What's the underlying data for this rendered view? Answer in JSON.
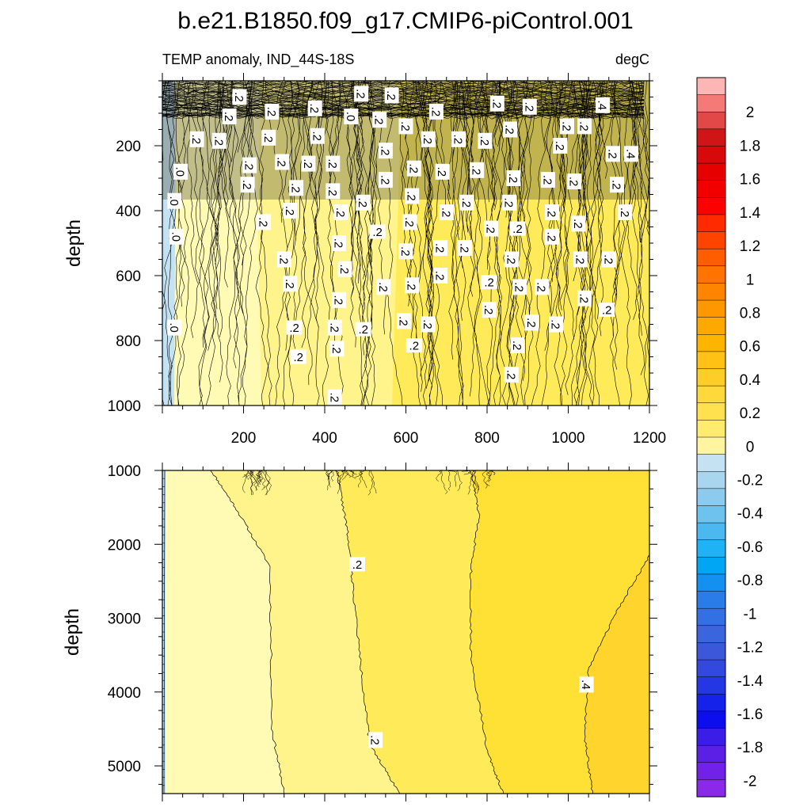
{
  "chart_data": {
    "type": "contour",
    "title": "b.e21.B1850.f09_g17.CMIP6-piControl.001",
    "subtitle_left": "TEMP anomaly, IND_44S-18S",
    "subtitle_right": "degC",
    "x_ticks": [
      200,
      400,
      600,
      800,
      1000,
      1200
    ],
    "xlim": [
      0,
      1200
    ],
    "panels": [
      {
        "name": "upper",
        "ylabel": "depth",
        "ylim": [
          0,
          1000
        ],
        "y_ticks": [
          200,
          400,
          600,
          800,
          1000
        ],
        "contour_labels": [
          {
            "text": ".2",
            "x": 190,
            "y": 50,
            "rot": 90
          },
          {
            "text": ".2",
            "x": 165,
            "y": 110,
            "rot": 90
          },
          {
            "text": ".2",
            "x": 270,
            "y": 95,
            "rot": 90
          },
          {
            "text": ".2",
            "x": 376,
            "y": 85,
            "rot": 90
          },
          {
            "text": ".2",
            "x": 490,
            "y": 40,
            "rot": 90
          },
          {
            "text": ".2",
            "x": 565,
            "y": 45,
            "rot": 90
          },
          {
            "text": ".0",
            "x": 465,
            "y": 110,
            "rot": 90
          },
          {
            "text": ".2",
            "x": 535,
            "y": 120,
            "rot": 90
          },
          {
            "text": ".2",
            "x": 600,
            "y": 140,
            "rot": 90
          },
          {
            "text": ".2",
            "x": 675,
            "y": 95,
            "rot": 90
          },
          {
            "text": ".2",
            "x": 825,
            "y": 70,
            "rot": 90
          },
          {
            "text": ".2",
            "x": 905,
            "y": 80,
            "rot": 90
          },
          {
            "text": ".4",
            "x": 1085,
            "y": 75,
            "rot": 90
          },
          {
            "text": ".2",
            "x": 857,
            "y": 150,
            "rot": 90
          },
          {
            "text": ".2",
            "x": 997,
            "y": 140,
            "rot": 90
          },
          {
            "text": ".2",
            "x": 1040,
            "y": 140,
            "rot": 90
          },
          {
            "text": ".2",
            "x": 85,
            "y": 180,
            "rot": 90
          },
          {
            "text": ".2",
            "x": 140,
            "y": 185,
            "rot": 90
          },
          {
            "text": ".2",
            "x": 262,
            "y": 175,
            "rot": 90
          },
          {
            "text": ".2",
            "x": 382,
            "y": 170,
            "rot": 90
          },
          {
            "text": ".2",
            "x": 655,
            "y": 180,
            "rot": 90
          },
          {
            "text": ".2",
            "x": 730,
            "y": 180,
            "rot": 90
          },
          {
            "text": ".2",
            "x": 795,
            "y": 185,
            "rot": 90
          },
          {
            "text": ".2",
            "x": 980,
            "y": 200,
            "rot": 90
          },
          {
            "text": ".2",
            "x": 1110,
            "y": 225,
            "rot": 90
          },
          {
            "text": ".4",
            "x": 1155,
            "y": 225,
            "rot": 90
          },
          {
            "text": ".2",
            "x": 550,
            "y": 215,
            "rot": 90
          },
          {
            "text": ".0",
            "x": 45,
            "y": 280,
            "rot": 90
          },
          {
            "text": ".2",
            "x": 215,
            "y": 260,
            "rot": 90
          },
          {
            "text": ".2",
            "x": 295,
            "y": 250,
            "rot": 90
          },
          {
            "text": ".2",
            "x": 360,
            "y": 255,
            "rot": 90
          },
          {
            "text": ".2",
            "x": 420,
            "y": 255,
            "rot": 90
          },
          {
            "text": ".2",
            "x": 620,
            "y": 270,
            "rot": 90
          },
          {
            "text": ".2",
            "x": 690,
            "y": 280,
            "rot": 90
          },
          {
            "text": ".2",
            "x": 775,
            "y": 275,
            "rot": 90
          },
          {
            "text": ".2",
            "x": 210,
            "y": 320,
            "rot": 90
          },
          {
            "text": ".2",
            "x": 330,
            "y": 330,
            "rot": 90
          },
          {
            "text": ".2",
            "x": 420,
            "y": 340,
            "rot": 90
          },
          {
            "text": ".2",
            "x": 550,
            "y": 305,
            "rot": 90
          },
          {
            "text": ".2",
            "x": 865,
            "y": 300,
            "rot": 90
          },
          {
            "text": ".2",
            "x": 950,
            "y": 305,
            "rot": 90
          },
          {
            "text": ".2",
            "x": 1015,
            "y": 310,
            "rot": 90
          },
          {
            "text": ".2",
            "x": 1120,
            "y": 320,
            "rot": 90
          },
          {
            "text": ".2",
            "x": 615,
            "y": 355,
            "rot": 90
          },
          {
            "text": ".0",
            "x": 30,
            "y": 370,
            "rot": 90
          },
          {
            "text": ".2",
            "x": 495,
            "y": 375,
            "rot": 90
          },
          {
            "text": ".2",
            "x": 750,
            "y": 375,
            "rot": 90
          },
          {
            "text": ".2",
            "x": 855,
            "y": 375,
            "rot": 90
          },
          {
            "text": ".2",
            "x": 315,
            "y": 400,
            "rot": 90
          },
          {
            "text": ".2",
            "x": 440,
            "y": 405,
            "rot": 90
          },
          {
            "text": ".2",
            "x": 700,
            "y": 405,
            "rot": 90
          },
          {
            "text": ".2",
            "x": 960,
            "y": 405,
            "rot": 90
          },
          {
            "text": ".2",
            "x": 1140,
            "y": 405,
            "rot": 90
          },
          {
            "text": ".2",
            "x": 250,
            "y": 435,
            "rot": 90
          },
          {
            "text": ".2",
            "x": 610,
            "y": 435,
            "rot": 90
          },
          {
            "text": ".2",
            "x": 810,
            "y": 455,
            "rot": 90
          },
          {
            "text": ".2",
            "x": 875,
            "y": 455,
            "rot": 0
          },
          {
            "text": ".2",
            "x": 1025,
            "y": 440,
            "rot": 90
          },
          {
            "text": ".0",
            "x": 35,
            "y": 480,
            "rot": 90
          },
          {
            "text": ".2",
            "x": 530,
            "y": 465,
            "rot": 0
          },
          {
            "text": ".2",
            "x": 435,
            "y": 500,
            "rot": 90
          },
          {
            "text": ".2",
            "x": 960,
            "y": 480,
            "rot": 90
          },
          {
            "text": ".2",
            "x": 600,
            "y": 525,
            "rot": 90
          },
          {
            "text": ".2",
            "x": 685,
            "y": 515,
            "rot": 90
          },
          {
            "text": ".2",
            "x": 745,
            "y": 515,
            "rot": 90
          },
          {
            "text": ".2",
            "x": 300,
            "y": 550,
            "rot": 90
          },
          {
            "text": ".2",
            "x": 860,
            "y": 550,
            "rot": 90
          },
          {
            "text": ".2",
            "x": 1030,
            "y": 550,
            "rot": 90
          },
          {
            "text": ".2",
            "x": 1100,
            "y": 550,
            "rot": 90
          },
          {
            "text": ".2",
            "x": 450,
            "y": 580,
            "rot": 90
          },
          {
            "text": ".2",
            "x": 685,
            "y": 600,
            "rot": 90
          },
          {
            "text": ".2",
            "x": 315,
            "y": 625,
            "rot": 90
          },
          {
            "text": ".2",
            "x": 545,
            "y": 635,
            "rot": 90
          },
          {
            "text": ".2",
            "x": 615,
            "y": 630,
            "rot": 90
          },
          {
            "text": ".2",
            "x": 805,
            "y": 620,
            "rot": 0
          },
          {
            "text": ".2",
            "x": 880,
            "y": 635,
            "rot": 90
          },
          {
            "text": ".2",
            "x": 935,
            "y": 635,
            "rot": 90
          },
          {
            "text": ".2",
            "x": 1040,
            "y": 670,
            "rot": 90
          },
          {
            "text": ".2",
            "x": 435,
            "y": 675,
            "rot": 90
          },
          {
            "text": ".2",
            "x": 805,
            "y": 705,
            "rot": 90
          },
          {
            "text": ".2",
            "x": 1095,
            "y": 705,
            "rot": 0
          },
          {
            "text": ".0",
            "x": 30,
            "y": 760,
            "rot": 90
          },
          {
            "text": ".2",
            "x": 325,
            "y": 760,
            "rot": 0
          },
          {
            "text": ".2",
            "x": 425,
            "y": 760,
            "rot": 90
          },
          {
            "text": ".2",
            "x": 495,
            "y": 765,
            "rot": 0
          },
          {
            "text": ".2",
            "x": 595,
            "y": 740,
            "rot": 90
          },
          {
            "text": ".2",
            "x": 655,
            "y": 750,
            "rot": 90
          },
          {
            "text": ".2",
            "x": 910,
            "y": 745,
            "rot": 90
          },
          {
            "text": ".2",
            "x": 970,
            "y": 750,
            "rot": 90
          },
          {
            "text": ".2",
            "x": 620,
            "y": 815,
            "rot": 0
          },
          {
            "text": ".2",
            "x": 875,
            "y": 815,
            "rot": 90
          },
          {
            "text": ".2",
            "x": 335,
            "y": 850,
            "rot": 0
          },
          {
            "text": ".2",
            "x": 430,
            "y": 825,
            "rot": 90
          },
          {
            "text": ".2",
            "x": 860,
            "y": 905,
            "rot": 90
          },
          {
            "text": ".2",
            "x": 425,
            "y": 975,
            "rot": 90
          }
        ]
      },
      {
        "name": "lower",
        "ylabel": "depth",
        "ylim": [
          1000,
          5375
        ],
        "y_ticks": [
          1000,
          2000,
          3000,
          4000,
          5000
        ],
        "regions": [
          {
            "label": ".0",
            "color": "#c4e2f2"
          },
          {
            "label": "0-0.1",
            "color": "#fffbb4"
          },
          {
            "label": "0.1-0.2",
            "color": "#fff48c"
          },
          {
            "label": "0.2-0.3",
            "color": "#ffeb5a"
          },
          {
            "label": "0.3-0.4",
            "color": "#ffe135"
          },
          {
            "label": "0.4-0.5",
            "color": "#fed42d"
          }
        ],
        "contour_labels": [
          {
            "text": ".2",
            "x": 480,
            "y": 2270,
            "rot": 0
          },
          {
            "text": ".2",
            "x": 525,
            "y": 4650,
            "rot": 90
          },
          {
            "text": ".4",
            "x": 1045,
            "y": 3900,
            "rot": 90
          }
        ]
      }
    ],
    "colorbar": {
      "labels": [
        "2",
        "1.8",
        "1.6",
        "1.4",
        "1.2",
        "1",
        "0.8",
        "0.6",
        "0.4",
        "0.2",
        "0",
        "-0.2",
        "-0.4",
        "-0.6",
        "-0.8",
        "-1",
        "-1.2",
        "-1.4",
        "-1.6",
        "-1.8",
        "-2"
      ],
      "colors_top_to_bottom": [
        "#fcb6b4",
        "#f47a78",
        "#e34848",
        "#cf1515",
        "#d60a0a",
        "#e60000",
        "#f20000",
        "#ff0000",
        "#ff2a00",
        "#ff4400",
        "#ff5d00",
        "#ff7300",
        "#ff8500",
        "#ff9700",
        "#ffa800",
        "#ffb400",
        "#ffc114",
        "#ffcd28",
        "#ffd83c",
        "#ffe150",
        "#ffeb6e",
        "#fff5a0",
        "#c4e2f2",
        "#a9d6ee",
        "#8ccbed",
        "#6ec3ee",
        "#4bb8f0",
        "#1fb2f4",
        "#00a6f3",
        "#1490f0",
        "#2a7ce9",
        "#3370e3",
        "#3a65dc",
        "#3d57db",
        "#3348df",
        "#2537e4",
        "#1422ea",
        "#0c0ef0",
        "#3a1ee8",
        "#5a20e6",
        "#7022e6",
        "#8a2ae8"
      ]
    }
  }
}
